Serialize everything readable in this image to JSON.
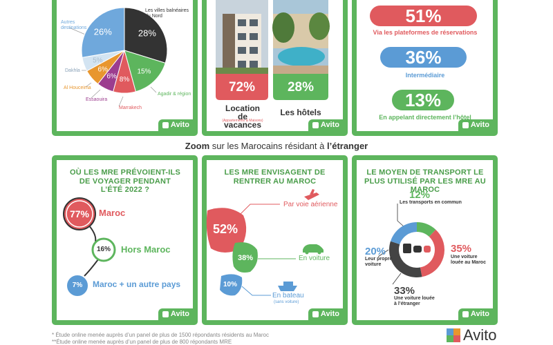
{
  "brand": "Avito",
  "chart_data": [
    {
      "type": "pie",
      "categories": [
        "Les villes balnéaires du Nord",
        "Agadir & région",
        "Marrakech",
        "Essaouira",
        "Al Houceima",
        "Dakhla",
        "Autres destinations"
      ],
      "values": [
        28,
        15,
        8,
        6,
        6,
        5,
        26
      ],
      "value_labels": [
        "28%",
        "15%",
        "8%",
        "6%",
        "6%",
        "5%",
        "26%"
      ],
      "colors": [
        "#333333",
        "#5db55d",
        "#e05a5e",
        "#9c3d8f",
        "#e8962e",
        "#d3e4f2",
        "#6fa8dc"
      ]
    },
    {
      "type": "donut",
      "title": "LE MOYEN DE TRANSPORT LE PLUS UTILISÉ PAR LES MRE AU MAROC",
      "categories": [
        "Les transports en commun",
        "Une voiture louée au Maroc",
        "Une voiture louée à l’étranger",
        "Leur propre voiture"
      ],
      "values": [
        12,
        35,
        33,
        20
      ],
      "value_labels": [
        "12%",
        "35%",
        "33%",
        "20%"
      ],
      "colors": [
        "#5db55d",
        "#e05a5e",
        "#444444",
        "#5b9bd5"
      ]
    }
  ],
  "accommodation": {
    "items": [
      {
        "value_label": "72%",
        "label": "Location de vacances",
        "note": "(Appartements & Maisons)"
      },
      {
        "value_label": "28%",
        "label": "Les hôtels"
      }
    ]
  },
  "booking": {
    "items": [
      {
        "value_label": "51%",
        "label": "Via les plateformes de réservations"
      },
      {
        "value_label": "36%",
        "label": "Intermédiaire"
      },
      {
        "value_label": "13%",
        "label": "En appelant directement l’hôtel"
      }
    ]
  },
  "section_title": {
    "parts": [
      "Zoom",
      "sur les Marocains résidant à",
      "l’étranger"
    ]
  },
  "destinations": {
    "title": "OÙ LES MRE PRÉVOIENT-ILS DE VOYAGER PENDANT L’ÉTÉ 2022 ?",
    "items": [
      {
        "value_label": "77%",
        "label": "Maroc"
      },
      {
        "value_label": "16%",
        "label": "Hors Maroc"
      },
      {
        "value_label": "7%",
        "label": "Maroc + un autre pays"
      }
    ]
  },
  "return_mode": {
    "title": "LES MRE ENVISAGENT DE RENTRER AU MAROC",
    "items": [
      {
        "value_label": "52%",
        "label": "Par voie aérienne"
      },
      {
        "value_label": "38%",
        "label": "En voiture"
      },
      {
        "value_label": "10%",
        "label": "En bateau",
        "note": "(sans voiture)"
      }
    ]
  },
  "footnotes": [
    "* Étude online menée auprès d’un panel de plus de 1500 répondants résidents au Maroc",
    "**Étude online menée auprès d’un panel de plus de 800 répondants MRE"
  ]
}
